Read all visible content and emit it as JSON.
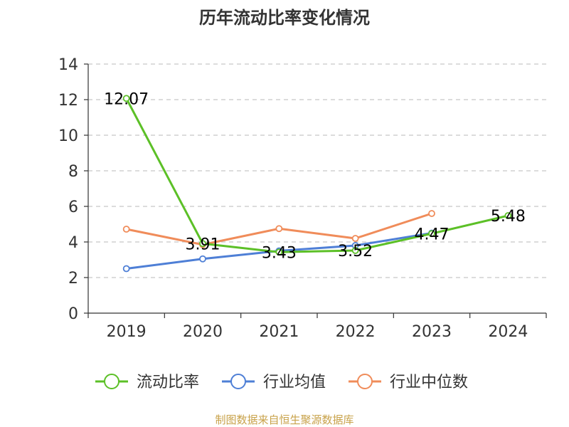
{
  "chart_data": {
    "type": "line",
    "title": "历年流动比率变化情况",
    "categories": [
      "2019",
      "2020",
      "2021",
      "2022",
      "2023",
      "2024"
    ],
    "ylim": [
      0,
      14
    ],
    "yticks": [
      0,
      2,
      4,
      6,
      8,
      10,
      12,
      14
    ],
    "grid": "dashed horizontal",
    "legend_position": "bottom",
    "series": [
      {
        "name": "流动比率",
        "color": "#5cc027",
        "values": [
          12.07,
          3.91,
          3.43,
          3.52,
          4.47,
          5.48
        ],
        "labels": [
          "12.07",
          "3.91",
          "3.43",
          "3.52",
          "4.47",
          "5.48"
        ]
      },
      {
        "name": "行业均值",
        "color": "#4e7fd6",
        "values": [
          2.5,
          3.05,
          3.5,
          3.8,
          4.5,
          null
        ]
      },
      {
        "name": "行业中位数",
        "color": "#f08c5a",
        "values": [
          4.72,
          3.85,
          4.75,
          4.2,
          5.6,
          null
        ]
      }
    ]
  },
  "source": "制图数据来自恒生聚源数据库"
}
